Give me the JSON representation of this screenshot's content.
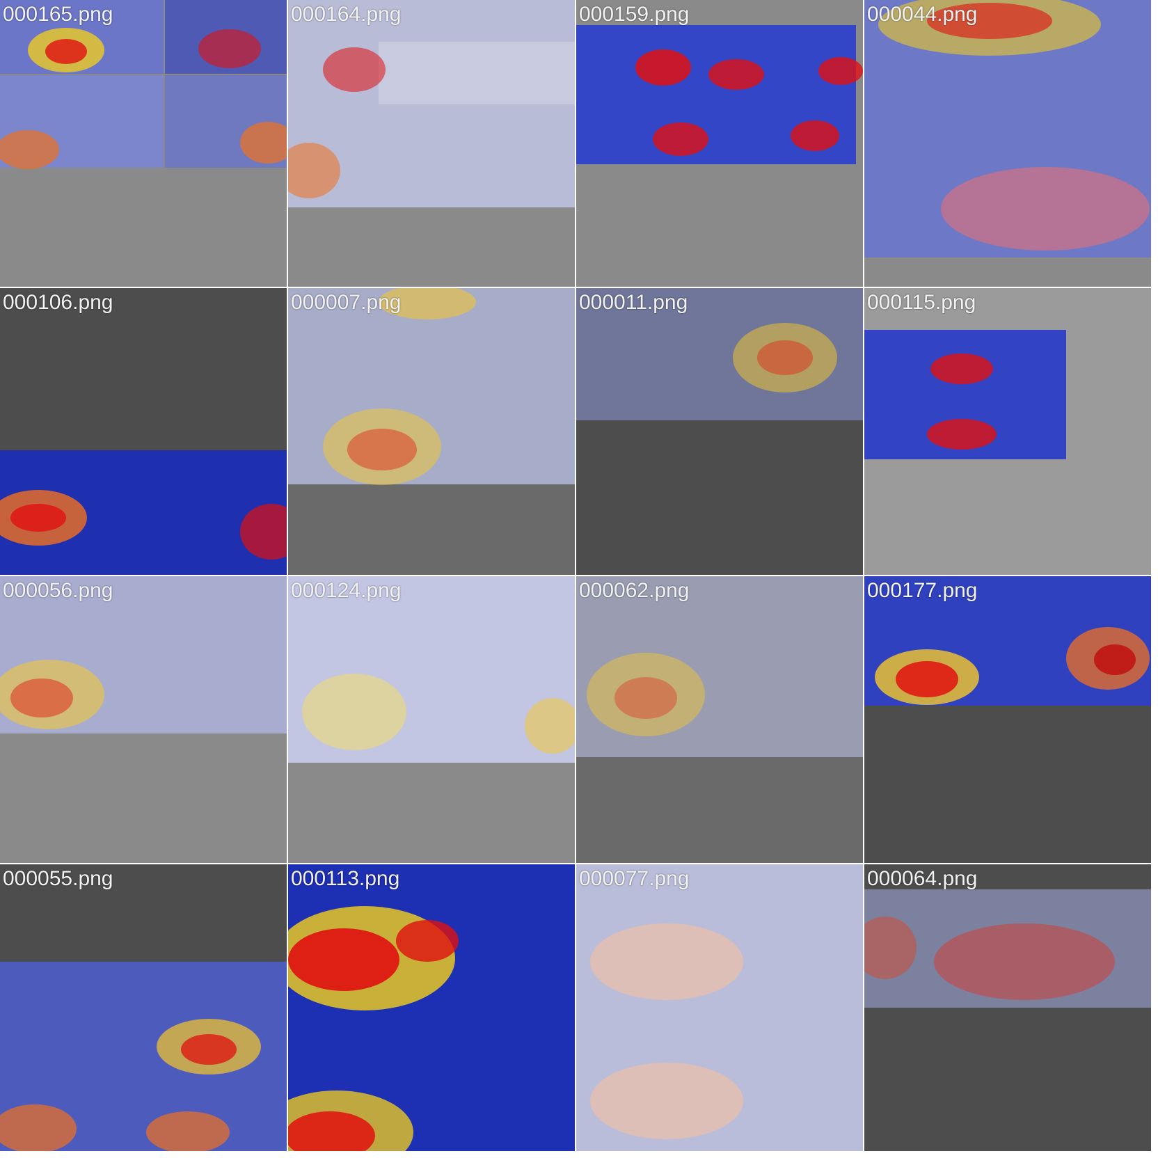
{
  "tiles": [
    {
      "label": "000165.png"
    },
    {
      "label": "000164.png"
    },
    {
      "label": "000159.png"
    },
    {
      "label": "000044.png"
    },
    {
      "label": "000106.png"
    },
    {
      "label": "000007.png"
    },
    {
      "label": "000011.png"
    },
    {
      "label": "000115.png"
    },
    {
      "label": "000056.png"
    },
    {
      "label": "000124.png"
    },
    {
      "label": "000062.png"
    },
    {
      "label": "000177.png"
    },
    {
      "label": "000055.png"
    },
    {
      "label": "000113.png"
    },
    {
      "label": "000077.png"
    },
    {
      "label": "000064.png"
    }
  ],
  "colors": {
    "tile_background_light": "#8c8c8c",
    "tile_background_dark": "#4d4d4d",
    "heatmap_hot": "#e01010",
    "heatmap_warm": "#f5d21a",
    "heatmap_cool": "#2a3fd8",
    "label_text": "#f2f2f2"
  }
}
